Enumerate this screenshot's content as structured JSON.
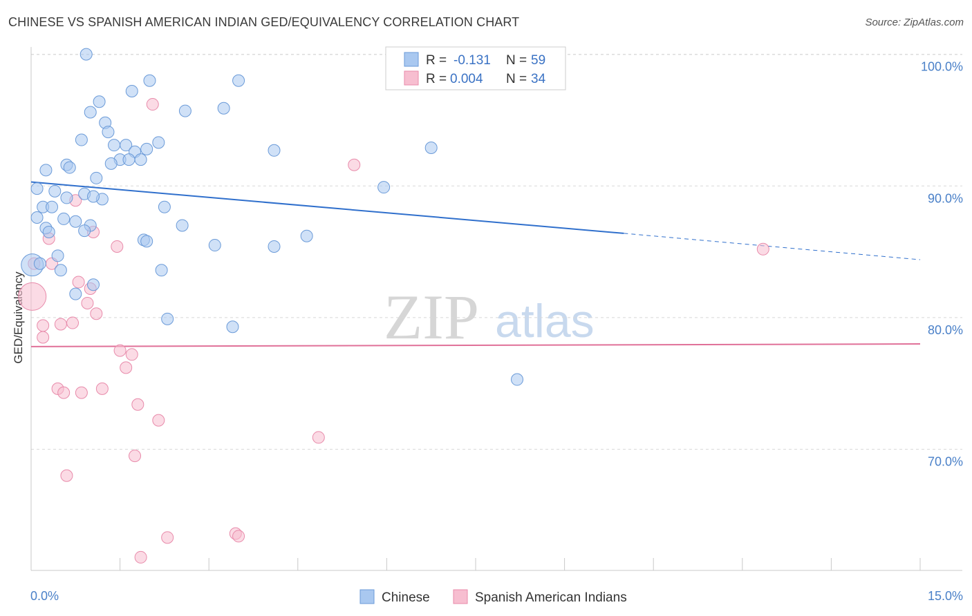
{
  "header": {
    "title": "CHINESE VS SPANISH AMERICAN INDIAN GED/EQUIVALENCY CORRELATION CHART",
    "source": "Source: ZipAtlas.com"
  },
  "watermark": {
    "zip": "ZIP",
    "atlas": "atlas"
  },
  "colors": {
    "chinese_fill": "#a9c8f0",
    "chinese_stroke": "#6a9ad8",
    "chinese_line": "#2f6fcc",
    "spanish_fill": "#f7bed0",
    "spanish_stroke": "#e88aaa",
    "spanish_line": "#e07098",
    "tick_text": "#4a80c8",
    "grid": "#d8d8d8"
  },
  "legend_box": {
    "rows": [
      {
        "r_label": "R =",
        "r_value": "-0.131",
        "n_label": "N =",
        "n_value": "59"
      },
      {
        "r_label": "R =",
        "r_value": "0.004",
        "n_label": "N =",
        "n_value": "34"
      }
    ]
  },
  "bottom_legend": {
    "items": [
      "Chinese",
      "Spanish American Indians"
    ]
  },
  "chart_data": {
    "type": "scatter",
    "title": "CHINESE VS SPANISH AMERICAN INDIAN GED/EQUIVALENCY CORRELATION CHART",
    "xlabel": "",
    "ylabel": "GED/Equivalency",
    "xlim": [
      0,
      15
    ],
    "ylim": [
      60.8,
      101.5
    ],
    "x_tick_labels": {
      "0": "0.0%",
      "15": "15.0%"
    },
    "y_tick_labels": {
      "100": "100.0%",
      "90": "90.0%",
      "80": "80.0%",
      "70": "70.0%"
    },
    "grid": "horizontal dashed",
    "series": [
      {
        "name": "Chinese",
        "R": -0.131,
        "N": 59,
        "trend": {
          "x0": 0,
          "y0": 90.3,
          "x1": 10.0,
          "y1": 86.4,
          "dashed_to_x": 15,
          "dashed_to_y": 84.4
        },
        "points": [
          [
            0.93,
            100.0
          ],
          [
            2.0,
            98.0
          ],
          [
            3.5,
            98.0
          ],
          [
            1.7,
            97.2
          ],
          [
            1.15,
            96.4
          ],
          [
            2.6,
            95.7
          ],
          [
            3.25,
            95.9
          ],
          [
            1.0,
            95.6
          ],
          [
            1.25,
            94.8
          ],
          [
            1.3,
            94.1
          ],
          [
            0.85,
            93.5
          ],
          [
            2.15,
            93.3
          ],
          [
            1.4,
            93.1
          ],
          [
            1.6,
            93.1
          ],
          [
            1.75,
            92.6
          ],
          [
            1.95,
            92.8
          ],
          [
            4.1,
            92.7
          ],
          [
            6.75,
            92.9
          ],
          [
            1.5,
            92.0
          ],
          [
            1.65,
            92.0
          ],
          [
            1.85,
            92.0
          ],
          [
            1.35,
            91.7
          ],
          [
            0.6,
            91.6
          ],
          [
            0.65,
            91.4
          ],
          [
            0.25,
            91.2
          ],
          [
            1.1,
            90.6
          ],
          [
            5.95,
            89.9
          ],
          [
            0.1,
            89.8
          ],
          [
            0.4,
            89.6
          ],
          [
            0.9,
            89.4
          ],
          [
            0.6,
            89.1
          ],
          [
            1.2,
            89.0
          ],
          [
            0.2,
            88.4
          ],
          [
            0.35,
            88.4
          ],
          [
            2.25,
            88.4
          ],
          [
            0.1,
            87.6
          ],
          [
            0.55,
            87.5
          ],
          [
            0.75,
            87.3
          ],
          [
            2.55,
            87.0
          ],
          [
            1.0,
            87.0
          ],
          [
            0.25,
            86.8
          ],
          [
            0.3,
            86.5
          ],
          [
            0.9,
            86.6
          ],
          [
            4.65,
            86.2
          ],
          [
            1.9,
            85.9
          ],
          [
            1.95,
            85.8
          ],
          [
            3.1,
            85.5
          ],
          [
            4.1,
            85.4
          ],
          [
            0.45,
            84.7
          ],
          [
            0.02,
            84.0
          ],
          [
            0.5,
            83.6
          ],
          [
            2.2,
            83.6
          ],
          [
            1.05,
            82.5
          ],
          [
            0.75,
            81.8
          ],
          [
            2.3,
            79.9
          ],
          [
            3.4,
            79.3
          ],
          [
            8.2,
            75.3
          ],
          [
            0.15,
            84.1
          ],
          [
            1.05,
            89.2
          ]
        ]
      },
      {
        "name": "Spanish American Indians",
        "R": 0.004,
        "N": 34,
        "trend": {
          "x0": 0,
          "y0": 77.8,
          "x1": 15,
          "y1": 78.0
        },
        "points": [
          [
            2.05,
            96.2
          ],
          [
            5.45,
            91.6
          ],
          [
            12.35,
            85.2
          ],
          [
            0.75,
            88.9
          ],
          [
            1.05,
            86.5
          ],
          [
            0.3,
            86.0
          ],
          [
            1.45,
            85.4
          ],
          [
            0.35,
            84.1
          ],
          [
            0.05,
            84.1
          ],
          [
            0.8,
            82.7
          ],
          [
            1.0,
            82.2
          ],
          [
            0.95,
            81.1
          ],
          [
            0.02,
            81.6
          ],
          [
            1.1,
            80.3
          ],
          [
            0.2,
            79.4
          ],
          [
            0.5,
            79.5
          ],
          [
            0.7,
            79.6
          ],
          [
            0.2,
            78.5
          ],
          [
            1.5,
            77.5
          ],
          [
            1.7,
            77.2
          ],
          [
            1.6,
            76.2
          ],
          [
            0.45,
            74.6
          ],
          [
            0.55,
            74.3
          ],
          [
            0.85,
            74.3
          ],
          [
            1.2,
            74.6
          ],
          [
            1.8,
            73.4
          ],
          [
            2.15,
            72.2
          ],
          [
            4.85,
            70.9
          ],
          [
            1.75,
            69.5
          ],
          [
            0.6,
            68.0
          ],
          [
            3.45,
            63.6
          ],
          [
            3.5,
            63.4
          ],
          [
            2.3,
            63.3
          ],
          [
            1.85,
            61.8
          ]
        ]
      }
    ]
  }
}
